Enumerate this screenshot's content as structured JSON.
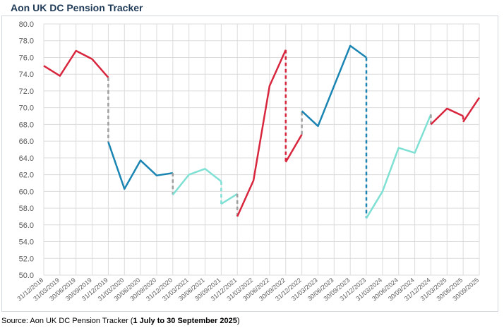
{
  "title": "Aon UK DC Pension Tracker",
  "source": {
    "prefix": "Source: Aon UK DC Pension Tracker (",
    "bold": "1 July to 30 September 2025",
    "suffix": ")"
  },
  "chart_data": {
    "type": "line",
    "title": "Aon UK DC Pension Tracker",
    "xlabel": "",
    "ylabel": "",
    "ylim": [
      50.0,
      80.0
    ],
    "ytick_step": 2.0,
    "grid": true,
    "legend": "none",
    "categories": [
      "31/12/2018",
      "31/03/2019",
      "30/06/2019",
      "30/09/2019",
      "31/12/2019",
      "31/03/2020",
      "30/06/2020",
      "30/09/2020",
      "31/12/2020",
      "31/03/2021",
      "30/06/2021",
      "30/09/2021",
      "31/12/2021",
      "31/03/2022",
      "30/06/2022",
      "30/09/2022",
      "31/12/2022",
      "31/03/2023",
      "30/06/2023",
      "30/09/2023",
      "31/12/2023",
      "31/03/2024",
      "30/06/2024",
      "30/09/2024",
      "31/12/2024",
      "31/03/2025",
      "30/06/2025",
      "30/09/2025"
    ],
    "series": [
      {
        "color": "#d7263d",
        "style": "solid",
        "points": [
          [
            0,
            75.0
          ],
          [
            1,
            73.8
          ],
          [
            2,
            76.8
          ],
          [
            3,
            75.8
          ],
          [
            4,
            73.6
          ]
        ]
      },
      {
        "color": "#9e9e9e",
        "style": "dashed",
        "points": [
          [
            4,
            73.6
          ],
          [
            4,
            65.9
          ]
        ]
      },
      {
        "color": "#1a85b3",
        "style": "solid",
        "points": [
          [
            4,
            65.9
          ],
          [
            5,
            60.3
          ],
          [
            6,
            63.7
          ],
          [
            7,
            61.9
          ],
          [
            8,
            62.2
          ]
        ]
      },
      {
        "color": "#9e9e9e",
        "style": "dashed",
        "points": [
          [
            8,
            62.2
          ],
          [
            8,
            59.6
          ]
        ]
      },
      {
        "color": "#7fe0d4",
        "style": "solid",
        "points": [
          [
            8,
            59.6
          ],
          [
            9,
            62.0
          ],
          [
            10,
            62.7
          ],
          [
            11,
            61.2
          ]
        ]
      },
      {
        "color": "#7fe0d4",
        "style": "dashed",
        "points": [
          [
            11,
            61.2
          ],
          [
            11,
            58.5
          ]
        ]
      },
      {
        "color": "#7fe0d4",
        "style": "solid",
        "points": [
          [
            11,
            58.5
          ],
          [
            12,
            59.7
          ]
        ]
      },
      {
        "color": "#9e9e9e",
        "style": "dashed",
        "points": [
          [
            12,
            59.7
          ],
          [
            12,
            57.0
          ]
        ]
      },
      {
        "color": "#d7263d",
        "style": "solid",
        "points": [
          [
            12,
            57.0
          ],
          [
            13,
            61.3
          ],
          [
            14,
            72.6
          ],
          [
            15,
            76.9
          ]
        ]
      },
      {
        "color": "#d7263d",
        "style": "dashed",
        "points": [
          [
            15,
            76.9
          ],
          [
            15,
            63.5
          ]
        ]
      },
      {
        "color": "#d7263d",
        "style": "solid",
        "points": [
          [
            15,
            63.5
          ],
          [
            16,
            66.8
          ]
        ]
      },
      {
        "color": "#9e9e9e",
        "style": "dashed",
        "points": [
          [
            16,
            66.8
          ],
          [
            16,
            69.6
          ]
        ]
      },
      {
        "color": "#1a85b3",
        "style": "solid",
        "points": [
          [
            16,
            69.6
          ],
          [
            17,
            67.8
          ],
          [
            18,
            72.6
          ],
          [
            19,
            77.4
          ],
          [
            20,
            76.0
          ]
        ]
      },
      {
        "color": "#1a85b3",
        "style": "dashed",
        "points": [
          [
            20,
            76.0
          ],
          [
            20,
            56.8
          ]
        ]
      },
      {
        "color": "#7fe0d4",
        "style": "solid",
        "points": [
          [
            20,
            56.8
          ],
          [
            21,
            60.0
          ],
          [
            22,
            65.2
          ],
          [
            23,
            64.6
          ],
          [
            24,
            69.2
          ]
        ]
      },
      {
        "color": "#9e9e9e",
        "style": "dashed",
        "points": [
          [
            24,
            69.2
          ],
          [
            24,
            68.0
          ]
        ]
      },
      {
        "color": "#d7263d",
        "style": "solid",
        "points": [
          [
            24,
            68.0
          ],
          [
            25,
            69.9
          ],
          [
            26,
            69.0
          ]
        ]
      },
      {
        "color": "#d7263d",
        "style": "dashed",
        "points": [
          [
            26,
            69.0
          ],
          [
            26,
            68.3
          ]
        ]
      },
      {
        "color": "#d7263d",
        "style": "solid",
        "points": [
          [
            26,
            68.3
          ],
          [
            27,
            71.2
          ]
        ]
      }
    ]
  }
}
